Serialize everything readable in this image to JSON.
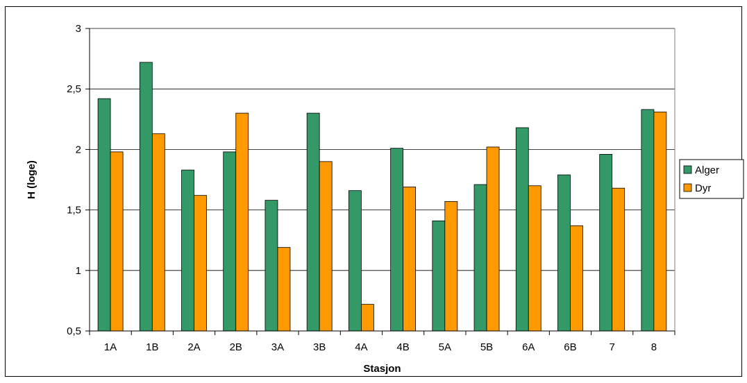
{
  "chart_data": {
    "type": "bar",
    "title": "",
    "xlabel": "Stasjon",
    "ylabel": "H (loge)",
    "ylim": [
      0.5,
      3
    ],
    "yticks": [
      "0,5",
      "1",
      "1,5",
      "2",
      "2,5",
      "3"
    ],
    "ytick_values": [
      0.5,
      1,
      1.5,
      2,
      2.5,
      3
    ],
    "grid": true,
    "legend_position": "right",
    "categories": [
      "1A",
      "1B",
      "2A",
      "2B",
      "3A",
      "3B",
      "4A",
      "4B",
      "5A",
      "5B",
      "6A",
      "6B",
      "7",
      "8"
    ],
    "series": [
      {
        "name": "Alger",
        "color": "#339966",
        "values": [
          2.42,
          2.72,
          1.83,
          1.98,
          1.58,
          2.3,
          1.66,
          2.01,
          1.41,
          1.71,
          2.18,
          1.79,
          1.96,
          2.33
        ]
      },
      {
        "name": "Dyr",
        "color": "#FF9900",
        "values": [
          1.98,
          2.13,
          1.62,
          2.3,
          1.19,
          1.9,
          0.72,
          1.69,
          1.57,
          2.02,
          1.7,
          1.37,
          1.68,
          2.31
        ]
      }
    ]
  }
}
